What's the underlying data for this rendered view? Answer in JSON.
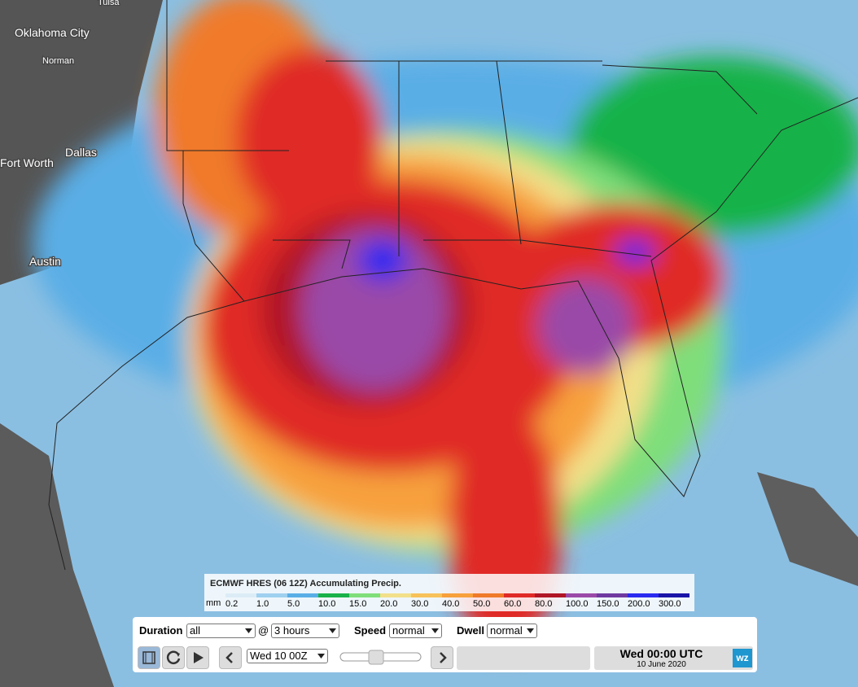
{
  "map_labels": [
    "Tulsa",
    "Oklahoma City",
    "Norman",
    "Fort Worth",
    "Dallas",
    "Austin"
  ],
  "legend": {
    "title": "ECMWF HRES (06 12Z) Accumulating Precip.",
    "unit": "mm",
    "items": [
      {
        "label": "0.2",
        "color": "#dcecf6"
      },
      {
        "label": "1.0",
        "color": "#9fd0f0"
      },
      {
        "label": "5.0",
        "color": "#5aaee6"
      },
      {
        "label": "10.0",
        "color": "#19b24a"
      },
      {
        "label": "15.0",
        "color": "#7fde7a"
      },
      {
        "label": "20.0",
        "color": "#f2e08a"
      },
      {
        "label": "30.0",
        "color": "#f7c25a"
      },
      {
        "label": "40.0",
        "color": "#f7a03c"
      },
      {
        "label": "50.0",
        "color": "#f07a2a"
      },
      {
        "label": "60.0",
        "color": "#e02a26"
      },
      {
        "label": "80.0",
        "color": "#b01626"
      },
      {
        "label": "100.0",
        "color": "#9a4aa8"
      },
      {
        "label": "150.0",
        "color": "#6e3aa0"
      },
      {
        "label": "200.0",
        "color": "#2a2af0"
      },
      {
        "label": "300.0",
        "color": "#1a14a8"
      }
    ]
  },
  "controls": {
    "duration_label": "Duration",
    "duration_value": "all",
    "at": "@",
    "interval_value": "3 hours",
    "speed_label": "Speed",
    "speed_value": "normal",
    "dwell_label": "Dwell",
    "dwell_value": "normal",
    "frame_value": "Wed 10 00Z",
    "time": "Wed 00:00 UTC",
    "date": "10 June 2020",
    "logo": "wz"
  }
}
